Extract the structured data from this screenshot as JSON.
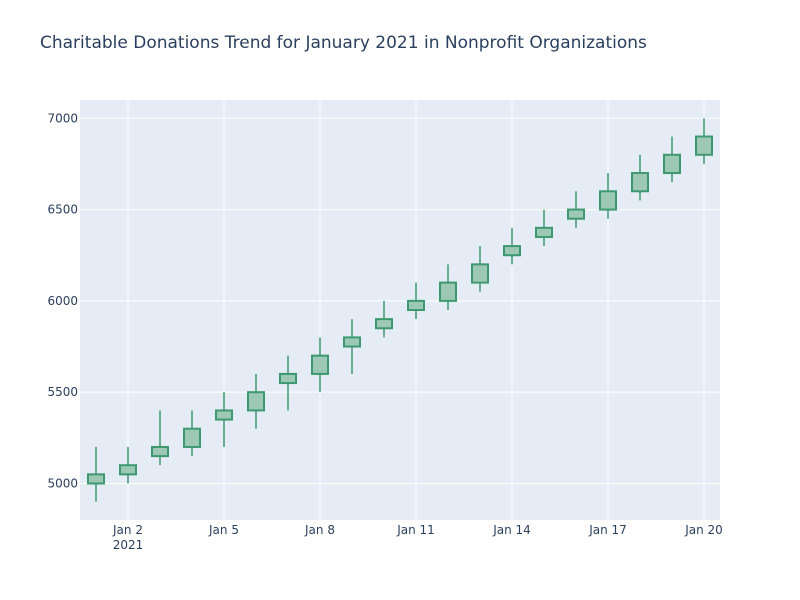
{
  "colors": {
    "plot_background": "#E5ECF6",
    "grid": "#ffffff",
    "increasing_line": "#3D9970",
    "increasing_fill": "#9EC8B6",
    "text": "#2a3f5f"
  },
  "chart_data": {
    "type": "candlestick",
    "title": "Charitable Donations Trend for January 2021 in Nonprofit Organizations",
    "xlabel": "",
    "ylabel": "",
    "ylim": [
      4800,
      7100
    ],
    "grid": true,
    "legend": "none",
    "x_tick_labels": [
      {
        "date": "2021-01-02",
        "label": "Jan 2",
        "sublabel": "2021"
      },
      {
        "date": "2021-01-05",
        "label": "Jan 5",
        "sublabel": ""
      },
      {
        "date": "2021-01-08",
        "label": "Jan 8",
        "sublabel": ""
      },
      {
        "date": "2021-01-11",
        "label": "Jan 11",
        "sublabel": ""
      },
      {
        "date": "2021-01-14",
        "label": "Jan 14",
        "sublabel": ""
      },
      {
        "date": "2021-01-17",
        "label": "Jan 17",
        "sublabel": ""
      },
      {
        "date": "2021-01-20",
        "label": "Jan 20",
        "sublabel": ""
      }
    ],
    "y_ticks": [
      5000,
      5500,
      6000,
      6500,
      7000
    ],
    "y_tick_labels": [
      "5000",
      "5500",
      "6000",
      "6500",
      "7000"
    ],
    "series": [
      {
        "dates": [
          "2021-01-01",
          "2021-01-02",
          "2021-01-03",
          "2021-01-04",
          "2021-01-05",
          "2021-01-06",
          "2021-01-07",
          "2021-01-08",
          "2021-01-09",
          "2021-01-10",
          "2021-01-11",
          "2021-01-12",
          "2021-01-13",
          "2021-01-14",
          "2021-01-15",
          "2021-01-16",
          "2021-01-17",
          "2021-01-18",
          "2021-01-19",
          "2021-01-20"
        ],
        "open": [
          5000,
          5050,
          5150,
          5200,
          5350,
          5400,
          5550,
          5600,
          5750,
          5850,
          5950,
          6000,
          6100,
          6250,
          6350,
          6450,
          6500,
          6600,
          6700,
          6800
        ],
        "high": [
          5200,
          5200,
          5400,
          5400,
          5500,
          5600,
          5700,
          5800,
          5900,
          6000,
          6100,
          6200,
          6300,
          6400,
          6500,
          6600,
          6700,
          6800,
          6900,
          7000
        ],
        "low": [
          4900,
          5000,
          5100,
          5150,
          5200,
          5300,
          5400,
          5500,
          5600,
          5800,
          5900,
          5950,
          6050,
          6200,
          6300,
          6400,
          6450,
          6550,
          6650,
          6750
        ],
        "close": [
          5050,
          5100,
          5200,
          5300,
          5400,
          5500,
          5600,
          5700,
          5800,
          5900,
          6000,
          6100,
          6200,
          6300,
          6400,
          6500,
          6600,
          6700,
          6800,
          6900
        ]
      }
    ]
  }
}
